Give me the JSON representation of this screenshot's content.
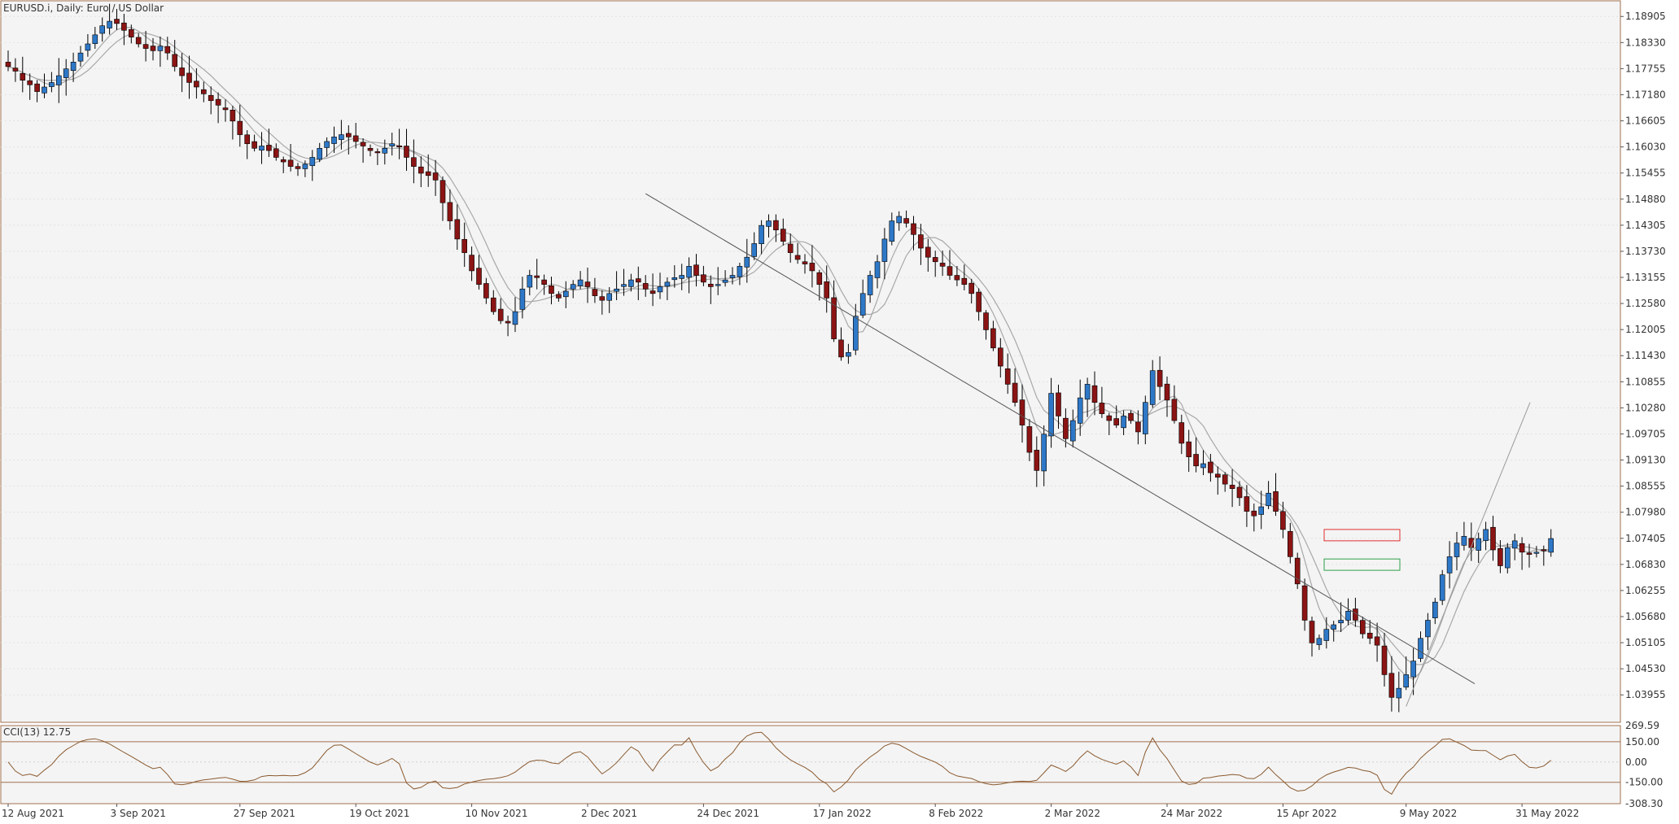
{
  "header": {
    "symbol_line": "EURUSD.i, Daily:  Euro / US Dollar"
  },
  "indicator": {
    "label": "CCI(13) 12.75",
    "levels": [
      "269.59",
      "150.00",
      "0.00",
      "-150.00",
      "-308.30"
    ]
  },
  "colors": {
    "background": "#F4F4F4",
    "frame": "#A0714E",
    "bull": "#2E78C8",
    "bear": "#8B1414",
    "wick": "#000000",
    "ma": "#A8A8A8",
    "cci": "#8A5A30",
    "trendline": "#555555",
    "resistance_box": "#E03030",
    "support_box": "#2EA04A"
  },
  "chart_data": {
    "type": "candlestick",
    "title": "EURUSD.i, Daily:  Euro / US Dollar",
    "price_ticks": [
      "1.18905",
      "1.18330",
      "1.17755",
      "1.17180",
      "1.16605",
      "1.16030",
      "1.15455",
      "1.14880",
      "1.14305",
      "1.13730",
      "1.13155",
      "1.12580",
      "1.12005",
      "1.11430",
      "1.10855",
      "1.10280",
      "1.09705",
      "1.09130",
      "1.08555",
      "1.07980",
      "1.07405",
      "1.06830",
      "1.06255",
      "1.05680",
      "1.05105",
      "1.04530",
      "1.03955"
    ],
    "price_range": [
      1.0335,
      1.1925
    ],
    "date_labels": [
      "12 Aug 2021",
      "3 Sep 2021",
      "27 Sep 2021",
      "19 Oct 2021",
      "10 Nov 2021",
      "2 Dec 2021",
      "24 Dec 2021",
      "17 Jan 2022",
      "8 Feb 2022",
      "2 Mar 2022",
      "24 Mar 2022",
      "15 Apr 2022",
      "9 May 2022",
      "31 May 2022"
    ],
    "bar_count": 214,
    "candles_close": [
      1.178,
      1.177,
      1.175,
      1.174,
      1.1725,
      1.1735,
      1.1745,
      1.176,
      1.1775,
      1.179,
      1.181,
      1.183,
      1.185,
      1.187,
      1.188,
      1.1875,
      1.186,
      1.1845,
      1.183,
      1.182,
      1.1815,
      1.1825,
      1.181,
      1.178,
      1.176,
      1.1745,
      1.1735,
      1.172,
      1.1705,
      1.1695,
      1.1685,
      1.166,
      1.163,
      1.161,
      1.16,
      1.1605,
      1.1595,
      1.158,
      1.157,
      1.156,
      1.1555,
      1.1565,
      1.158,
      1.16,
      1.1615,
      1.1625,
      1.163,
      1.1625,
      1.1615,
      1.1605,
      1.1595,
      1.159,
      1.16,
      1.161,
      1.1605,
      1.158,
      1.156,
      1.1545,
      1.154,
      1.153,
      1.148,
      1.144,
      1.14,
      1.137,
      1.133,
      1.13,
      1.127,
      1.124,
      1.122,
      1.1215,
      1.124,
      1.129,
      1.132,
      1.1315,
      1.13,
      1.128,
      1.127,
      1.1285,
      1.13,
      1.131,
      1.1295,
      1.1275,
      1.1265,
      1.128,
      1.129,
      1.13,
      1.131,
      1.1305,
      1.129,
      1.128,
      1.1295,
      1.1305,
      1.1315,
      1.132,
      1.134,
      1.132,
      1.1305,
      1.1295,
      1.13,
      1.131,
      1.132,
      1.134,
      1.136,
      1.139,
      1.143,
      1.144,
      1.142,
      1.1395,
      1.137,
      1.1355,
      1.1345,
      1.133,
      1.13,
      1.127,
      1.118,
      1.114,
      1.115,
      1.123,
      1.128,
      1.132,
      1.135,
      1.14,
      1.144,
      1.145,
      1.1435,
      1.141,
      1.138,
      1.136,
      1.135,
      1.134,
      1.132,
      1.131,
      1.13,
      1.128,
      1.124,
      1.12,
      1.116,
      1.112,
      1.108,
      1.104,
      1.099,
      1.093,
      1.089,
      1.097,
      1.106,
      1.101,
      1.096,
      1.1,
      1.105,
      1.108,
      1.104,
      1.1015,
      1.1,
      1.099,
      1.101,
      1.1,
      1.0975,
      1.104,
      1.111,
      1.1075,
      1.1045,
      1.1,
      1.095,
      1.092,
      1.09,
      1.0905,
      1.0885,
      1.0875,
      1.086,
      1.085,
      1.083,
      1.08,
      1.079,
      1.081,
      1.084,
      1.08,
      1.076,
      1.07,
      1.064,
      1.056,
      1.051,
      1.052,
      1.054,
      1.055,
      1.056,
      1.058,
      1.056,
      1.053,
      1.052,
      1.0505,
      1.044,
      1.039,
      1.041,
      1.044,
      1.047,
      1.052,
      1.056,
      1.06,
      1.066,
      1.07,
      1.073,
      1.0745,
      1.072,
      1.074,
      1.076,
      1.0715,
      1.068,
      1.072,
      1.0735,
      1.071,
      1.0705,
      1.071,
      1.0715,
      1.074
    ],
    "moving_averages": [
      "MA fast",
      "MA slow"
    ],
    "resistance_box": [
      1.076,
      1.0735
    ],
    "support_box": [
      1.0695,
      1.067
    ],
    "indicator_series": "CCI(13)",
    "indicator_value": 12.75,
    "indicator_range": [
      -308.3,
      269.59
    ]
  }
}
